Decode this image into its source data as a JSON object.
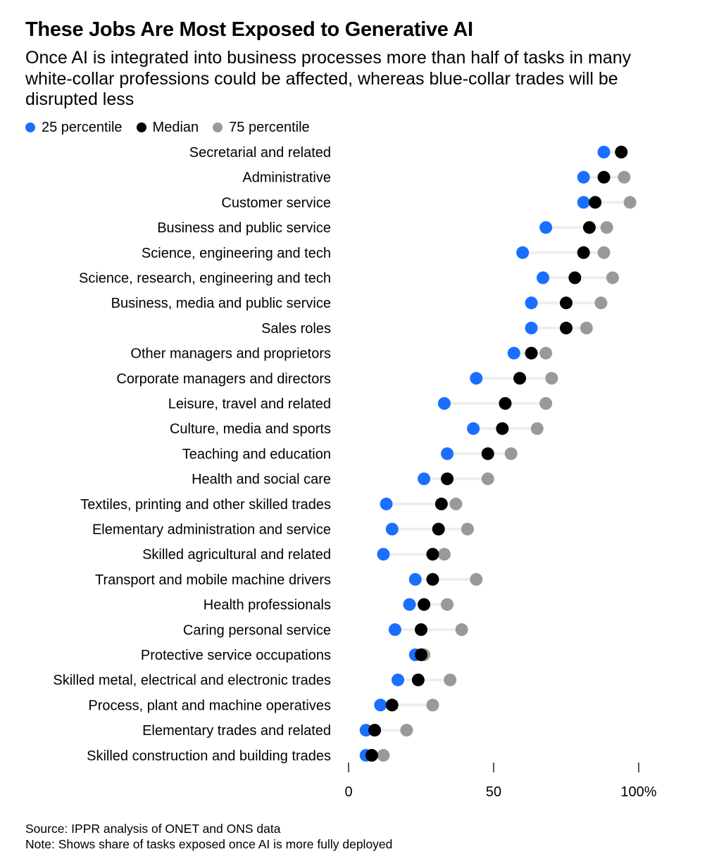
{
  "title": "These Jobs Are Most Exposed to Generative AI",
  "subtitle": "Once AI is integrated into business processes more than half of tasks in many white-collar professions could be affected, whereas blue-collar trades will be disrupted less",
  "legend": [
    {
      "label": "25 percentile",
      "color": "#1a6fff"
    },
    {
      "label": "Median",
      "color": "#000000"
    },
    {
      "label": "75 percentile",
      "color": "#999999"
    }
  ],
  "source": "Source: IPPR analysis of ONET and ONS data",
  "note": "Note: Shows share of tasks exposed once AI is more fully deployed",
  "chart_data": {
    "type": "scatter",
    "xlim": [
      0,
      100
    ],
    "xticks": [
      0,
      50,
      100
    ],
    "xtick_labels": [
      "0",
      "50",
      "100%"
    ],
    "grid": false,
    "legend_position": "top-left",
    "colors": {
      "p25": "#1a6fff",
      "median": "#000000",
      "p75": "#999999",
      "connector": "#eeeeee"
    },
    "categories": [
      "Secretarial and related",
      "Administrative",
      "Customer service",
      "Business and public service",
      "Science, engineering and tech",
      "Science, research, engineering and tech",
      "Business, media and public service",
      "Sales roles",
      "Other managers and proprietors",
      "Corporate managers and directors",
      "Leisure, travel and related",
      "Culture, media and sports",
      "Teaching and education",
      "Health and social care",
      "Textiles, printing and other skilled trades",
      "Elementary administration and service",
      "Skilled agricultural and related",
      "Transport and mobile machine drivers",
      "Health professionals",
      "Caring personal service",
      "Protective service occupations",
      "Skilled metal, electrical and electronic trades",
      "Process, plant and machine operatives",
      "Elementary trades and related",
      "Skilled construction and building trades"
    ],
    "series": [
      {
        "name": "25 percentile",
        "key": "p25",
        "values": [
          88,
          81,
          81,
          68,
          60,
          67,
          63,
          63,
          57,
          44,
          33,
          43,
          34,
          26,
          13,
          15,
          12,
          23,
          21,
          16,
          23,
          17,
          11,
          6,
          6
        ]
      },
      {
        "name": "Median",
        "key": "median",
        "values": [
          94,
          88,
          85,
          83,
          81,
          78,
          75,
          75,
          63,
          59,
          54,
          53,
          48,
          34,
          32,
          31,
          29,
          29,
          26,
          25,
          25,
          24,
          15,
          9,
          8
        ]
      },
      {
        "name": "75 percentile",
        "key": "p75",
        "values": [
          94,
          95,
          97,
          89,
          88,
          91,
          87,
          82,
          68,
          70,
          68,
          65,
          56,
          48,
          37,
          41,
          33,
          44,
          34,
          39,
          26,
          35,
          29,
          20,
          12
        ]
      }
    ]
  }
}
